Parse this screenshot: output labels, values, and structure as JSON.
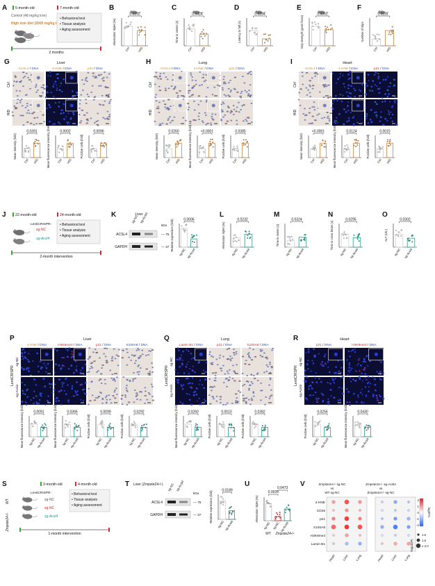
{
  "panel_letters": [
    "A",
    "B",
    "C",
    "D",
    "E",
    "F",
    "G",
    "H",
    "I",
    "J",
    "K",
    "L",
    "M",
    "N",
    "O",
    "P",
    "Q",
    "R",
    "S",
    "T",
    "U",
    "V"
  ],
  "colors": {
    "ctrl": "#c9c9c9",
    "hid": "#c8843c",
    "sgnc": "#cfcfcf",
    "sgacsl4": "#1f9a8e",
    "red": "#d6262b",
    "green": "#3aa635",
    "blue": "#1f4fc9",
    "orange": "#e08a1e",
    "ihc_bg": "#e9e2dc",
    "if_bg": "#0c0d33"
  },
  "panelA": {
    "start": "5-month-old",
    "end": "7-month-old",
    "control": "Control (48 mg/kg iron)",
    "hid": "High iron diet (2000 mg/kg iron)",
    "duration": "2 months",
    "outcomes": [
      "Behavioral test",
      "Tissue analysis",
      "Aging assessment"
    ]
  },
  "top_row": [
    {
      "letter": "B",
      "ylabel": "Alternation triplet (%)",
      "p": "0.0392",
      "groups": [
        "Ctrl",
        "HID"
      ],
      "means": [
        0.7,
        0.55
      ]
    },
    {
      "letter": "C",
      "ylabel": "Time in center (s)",
      "p": "0.0424",
      "groups": [
        "Ctrl",
        "HID"
      ],
      "means": [
        0.62,
        0.42
      ]
    },
    {
      "letter": "D",
      "ylabel": "Latency to fall (s)",
      "p": "0.0184",
      "groups": [
        "Ctrl",
        "HID"
      ],
      "means": [
        0.55,
        0.25
      ]
    },
    {
      "letter": "E",
      "ylabel": "Grip strength (gram force)",
      "p": "0.0062",
      "groups": [
        "Ctrl",
        "HID"
      ],
      "means": [
        0.7,
        0.58
      ]
    },
    {
      "letter": "F",
      "ylabel": "Number of slips",
      "p": "0.0116",
      "groups": [
        "Ctrl",
        "HID"
      ],
      "means": [
        0.25,
        0.55
      ]
    }
  ],
  "panelG": {
    "tissue": "Liver",
    "stains": [
      "ACSL4 / DNA",
      "4-HNE / DNA",
      "p21 / DNA"
    ],
    "rows": [
      "Ctrl",
      "HID"
    ],
    "bars": [
      {
        "ylabel": "Mean intensity (fold)",
        "p": "0.0391"
      },
      {
        "ylabel": "Mean fluorescence intensity (fold)",
        "p": "0.0002"
      },
      {
        "ylabel": "Positive cells (fold)",
        "p": "0.0096"
      }
    ]
  },
  "panelH": {
    "tissue": "Lung",
    "stains": [
      "ACSL4 / DNA",
      "4-HNE / DNA",
      "p21 / DNA"
    ],
    "rows": [
      "Ctrl",
      "HID"
    ],
    "bars": [
      {
        "ylabel": "Mean intensity (fold)",
        "p": "0.0260"
      },
      {
        "ylabel": "Mean fluorescence intensity (fold)",
        "p": "<0.0001"
      },
      {
        "ylabel": "Positive cells (fold)",
        "p": "0.0385"
      }
    ]
  },
  "panelI": {
    "tissue": "Heart",
    "stains": [
      "ACSL4 / DNA",
      "4-HNE / DNA",
      "p21 / DNA"
    ],
    "rows": [
      "Ctrl",
      "HID"
    ],
    "bars": [
      {
        "ylabel": "Mean intensity (fold)",
        "p": "<0.0001"
      },
      {
        "ylabel": "Mean fluorescence intensity (fold)",
        "p": "0.0124"
      },
      {
        "ylabel": "Positive cells (fold)",
        "p": "0.0015"
      }
    ]
  },
  "panelJ": {
    "start": "22-month-old",
    "end": "24-month-old",
    "tool": "LentiCRISPR:",
    "groups": [
      "sg-NC",
      "sg-Acsl4"
    ],
    "outcomes": [
      "Behavioral test",
      "Tissue analysis",
      "Aging assessment"
    ],
    "duration": "2-month intervention"
  },
  "panelK": {
    "tissue": "Liver",
    "lanes": [
      "sg-NC",
      "sg-Acsl4"
    ],
    "kda_label": "kDa",
    "proteins": [
      {
        "name": "ACSL4",
        "kda": "75"
      },
      {
        "name": "GAPDH",
        "kda": "37"
      }
    ],
    "ylabel": "Relative expression (fold)",
    "p": "0.0006",
    "groups": [
      "sg-NC",
      "sg-Acsl4"
    ],
    "means": [
      0.8,
      0.35
    ]
  },
  "middle_row": [
    {
      "letter": "L",
      "ylabel": "Alternation triplet (%)",
      "p": "0.0232",
      "groups": [
        "sg-NC",
        "sg-Acsl4"
      ],
      "means": [
        0.4,
        0.55
      ]
    },
    {
      "letter": "M",
      "ylabel": "Time in center (s)",
      "p": "0.0324",
      "groups": [
        "sg-NC",
        "sg-Acsl4"
      ],
      "means": [
        0.28,
        0.42
      ]
    },
    {
      "letter": "N",
      "ylabel": "Time to cross beam (s)",
      "p": "0.0295",
      "groups": [
        "sg-NC",
        "sg-Acsl4"
      ],
      "means": [
        0.55,
        0.4
      ]
    },
    {
      "letter": "O",
      "ylabel": "ALT (U/L)",
      "p": "0.0302",
      "groups": [
        "sg-NC",
        "sg-Acsl4"
      ],
      "means": [
        0.55,
        0.38
      ]
    }
  ],
  "panelP": {
    "tissue": "Liver",
    "side": "LentiCRISPR",
    "stains": [
      "4-HNE / DNA",
      "H3K9me3 / DNA",
      "p21 / DNA",
      "S100A8 / DNA"
    ],
    "rows": [
      "sg-NC",
      "sg-Acsl4"
    ],
    "bars": [
      {
        "ylabel": "Mean fluorescence intensity (fold)",
        "p": "0.0091"
      },
      {
        "ylabel": "Mean fluorescence intensity (fold)",
        "p": "0.0366"
      },
      {
        "ylabel": "Positive cells (fold)",
        "p": "0.0099"
      },
      {
        "ylabel": "Positive cells (fold)",
        "p": "0.0292"
      }
    ]
  },
  "panelQ": {
    "tissue": "Lung",
    "side": "LentiCRISPR",
    "stains": [
      "Lamin B1 / DNA",
      "p21 / DNA",
      "S100A8 / DNA"
    ],
    "rows": [
      "sg-NC",
      "sg-Acsl4"
    ],
    "bars": [
      {
        "ylabel": "Mean fluorescence intensity (fold)",
        "p": "0.0260"
      },
      {
        "ylabel": "Positive cells (fold)",
        "p": "0.0010"
      },
      {
        "ylabel": "Positive cells (fold)",
        "p": "0.0382"
      }
    ]
  },
  "panelR": {
    "tissue": "Heart",
    "side": "LentiCRISPR",
    "stains": [
      "p21 / DNA",
      "H3K9me3 / DNA"
    ],
    "rows": [
      "sg-NC",
      "sg-Acsl4"
    ],
    "bars": [
      {
        "ylabel": "Positive cells (fold)",
        "p": "0.0256"
      },
      {
        "ylabel": "Mean fluorescence intensity (fold)",
        "p": "0.0430"
      }
    ]
  },
  "panelS": {
    "start": "3-month-old",
    "end": "4-month-old",
    "tool": "LentiCRISPR:",
    "genotypes": [
      "WT",
      "Zmpste24-/-"
    ],
    "groups": [
      "sg-NC",
      "sg-NC",
      "sg-Acsl4"
    ],
    "outcomes": [
      "Behavioral test",
      "Tissue analysis",
      "Aging assessment"
    ],
    "duration": "1-month intervention"
  },
  "panelT": {
    "title": "Liver (Zmpste24-/-)",
    "lanes": [
      "sg-NC",
      "sg-Acsl4"
    ],
    "kda_label": "kDa",
    "proteins": [
      {
        "name": "ACSL4",
        "kda": "75"
      },
      {
        "name": "GAPDH",
        "kda": "37"
      }
    ],
    "ylabel": "Relative expression (fold)",
    "p": "0.0189",
    "groups": [
      "sg-NC",
      "sg-Acsl4"
    ],
    "means": [
      0.75,
      0.35
    ]
  },
  "panelU": {
    "ylabel": "Alternation triplet (%)",
    "p1": "0.0026",
    "p2": "0.0473",
    "groups": [
      "sg-NC",
      "sg-NC",
      "sg-Acsl4"
    ],
    "xgroups": [
      "WT",
      "Zmpste24-/-"
    ],
    "means": [
      0.72,
      0.18,
      0.5
    ]
  },
  "panelV": {
    "title_left_1": "Zmpste24-/- sg-NC",
    "title_left_2": "vs",
    "title_left_3": "WT sg-NC",
    "title_right_1": "Zmpste24-/- sg-Acsl4",
    "title_right_2": "vs",
    "title_right_3": "Zmpste24-/- sg-NC",
    "rows": [
      "4-HNE",
      "CD45",
      "p21",
      "S100A8",
      "H3K9me3",
      "Lamin B1"
    ],
    "cols": [
      "Heart",
      "Liver",
      "Lung"
    ],
    "legend_fc": "log2FC",
    "legend_fc_ticks": [
      "2",
      "1",
      "0",
      "-1",
      "-2"
    ],
    "legend_p": "-log10(P)",
    "legend_p_ticks": [
      "1.0",
      "1.5",
      "≥ 2.0"
    ]
  }
}
